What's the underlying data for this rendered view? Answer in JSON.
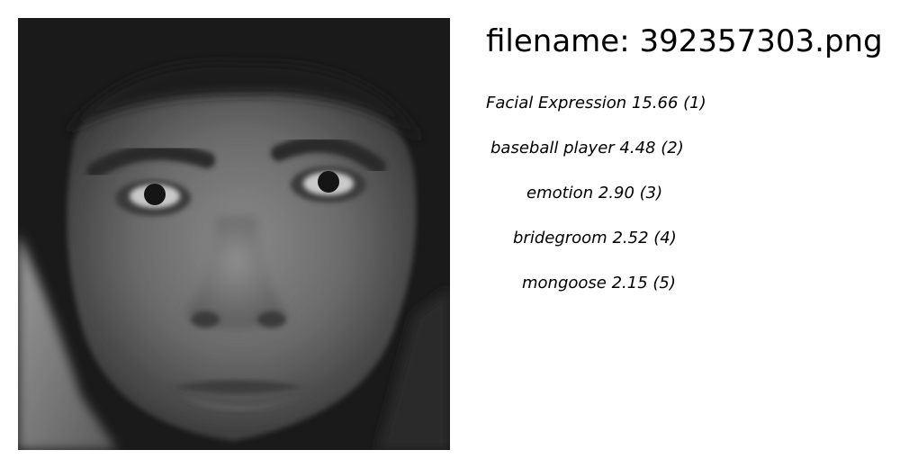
{
  "filename_label": "filename: 392357303.png",
  "predictions": [
    {
      "label": "Facial Expression",
      "score": "15.66",
      "rank": "(1)"
    },
    {
      "label": "baseball player",
      "score": "4.48",
      "rank": "(2)"
    },
    {
      "label": "emotion",
      "score": "2.90",
      "rank": "(3)"
    },
    {
      "label": "bridegroom",
      "score": "2.52",
      "rank": "(4)"
    },
    {
      "label": "mongoose",
      "score": "2.15",
      "rank": "(5)"
    }
  ]
}
